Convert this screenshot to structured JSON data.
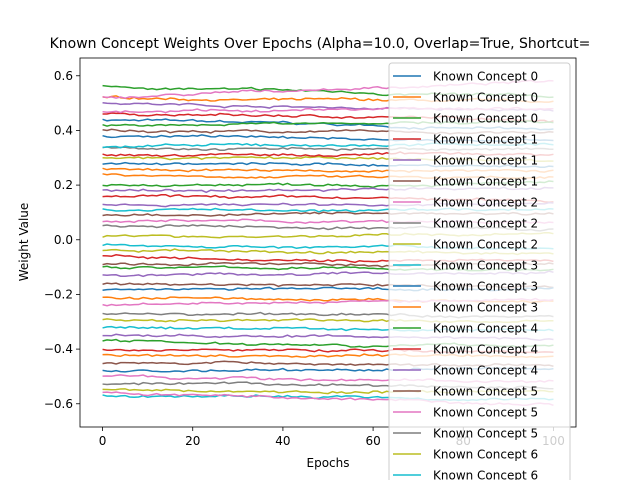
{
  "chart_data": {
    "type": "line",
    "title": "Known Concept Weights Over Epochs (Alpha=10.0, Overlap=True, Shortcut=",
    "xlabel": "Epochs",
    "ylabel": "Weight Value",
    "xlim": [
      -5,
      105
    ],
    "ylim": [
      -0.685,
      0.665
    ],
    "xticks": [
      0,
      20,
      40,
      60,
      80,
      100
    ],
    "yticks": [
      -0.6,
      -0.4,
      -0.2,
      0.0,
      0.2,
      0.4,
      0.6
    ],
    "xtick_labels": [
      "0",
      "20",
      "40",
      "60",
      "80",
      "100"
    ],
    "ytick_labels": [
      "−0.6",
      "−0.4",
      "−0.2",
      "0.0",
      "0.2",
      "0.4",
      "0.6"
    ],
    "grid": false,
    "legend_position": "upper-right",
    "epochs": [
      0,
      100
    ],
    "palette": [
      "#1f77b4",
      "#ff7f0e",
      "#2ca02c",
      "#d62728",
      "#9467bd",
      "#8c564b",
      "#e377c2",
      "#7f7f7f",
      "#bcbd22",
      "#17becf"
    ],
    "series": [
      {
        "name": "Known Concept 0",
        "color": "#1f77b4",
        "start": 0.44,
        "end": 0.4
      },
      {
        "name": "Known Concept 0",
        "color": "#ff7f0e",
        "start": 0.52,
        "end": 0.5
      },
      {
        "name": "Known Concept 0",
        "color": "#2ca02c",
        "start": 0.56,
        "end": 0.52
      },
      {
        "name": "Known Concept 1",
        "color": "#d62728",
        "start": 0.46,
        "end": 0.44
      },
      {
        "name": "Known Concept 1",
        "color": "#9467bd",
        "start": 0.5,
        "end": 0.47
      },
      {
        "name": "Known Concept 1",
        "color": "#8c564b",
        "start": 0.4,
        "end": 0.39
      },
      {
        "name": "Known Concept 2",
        "color": "#e377c2",
        "start": 0.52,
        "end": 0.58
      },
      {
        "name": "Known Concept 2",
        "color": "#7f7f7f",
        "start": 0.34,
        "end": 0.33
      },
      {
        "name": "Known Concept 2",
        "color": "#bcbd22",
        "start": 0.3,
        "end": 0.29
      },
      {
        "name": "Known Concept 3",
        "color": "#17becf",
        "start": 0.34,
        "end": 0.35
      },
      {
        "name": "Known Concept 3",
        "color": "#1f77b4",
        "start": 0.28,
        "end": 0.27
      },
      {
        "name": "Known Concept 3",
        "color": "#ff7f0e",
        "start": 0.24,
        "end": 0.22
      },
      {
        "name": "Known Concept 4",
        "color": "#2ca02c",
        "start": 0.2,
        "end": 0.21
      },
      {
        "name": "Known Concept 4",
        "color": "#d62728",
        "start": 0.16,
        "end": 0.14
      },
      {
        "name": "Known Concept 4",
        "color": "#9467bd",
        "start": 0.13,
        "end": 0.13
      },
      {
        "name": "Known Concept 5",
        "color": "#8c564b",
        "start": 0.09,
        "end": 0.1
      },
      {
        "name": "Known Concept 5",
        "color": "#e377c2",
        "start": 0.07,
        "end": 0.06
      },
      {
        "name": "Known Concept 5",
        "color": "#7f7f7f",
        "start": 0.05,
        "end": 0.04
      },
      {
        "name": "Known Concept 6",
        "color": "#bcbd22",
        "start": 0.01,
        "end": 0.02
      },
      {
        "name": "Known Concept 6",
        "color": "#17becf",
        "start": -0.02,
        "end": -0.03
      }
    ],
    "extra_lines": [
      {
        "color": "#d62728",
        "start": -0.06,
        "end": -0.08
      },
      {
        "color": "#2ca02c",
        "start": -0.1,
        "end": -0.11
      },
      {
        "color": "#9467bd",
        "start": -0.13,
        "end": -0.12
      },
      {
        "color": "#8c564b",
        "start": -0.16,
        "end": -0.17
      },
      {
        "color": "#1f77b4",
        "start": -0.18,
        "end": -0.18
      },
      {
        "color": "#ff7f0e",
        "start": -0.21,
        "end": -0.23
      },
      {
        "color": "#e377c2",
        "start": -0.24,
        "end": -0.22
      },
      {
        "color": "#7f7f7f",
        "start": -0.27,
        "end": -0.28
      },
      {
        "color": "#bcbd22",
        "start": -0.29,
        "end": -0.3
      },
      {
        "color": "#17becf",
        "start": -0.32,
        "end": -0.33
      },
      {
        "color": "#9467bd",
        "start": -0.35,
        "end": -0.36
      },
      {
        "color": "#2ca02c",
        "start": -0.37,
        "end": -0.39
      },
      {
        "color": "#d62728",
        "start": -0.4,
        "end": -0.41
      },
      {
        "color": "#ff7f0e",
        "start": -0.42,
        "end": -0.42
      },
      {
        "color": "#8c564b",
        "start": -0.45,
        "end": -0.46
      },
      {
        "color": "#1f77b4",
        "start": -0.48,
        "end": -0.47
      },
      {
        "color": "#e377c2",
        "start": -0.5,
        "end": -0.52
      },
      {
        "color": "#7f7f7f",
        "start": -0.53,
        "end": -0.54
      },
      {
        "color": "#bcbd22",
        "start": -0.55,
        "end": -0.56
      },
      {
        "color": "#17becf",
        "start": -0.57,
        "end": -0.58
      },
      {
        "color": "#e377c2",
        "start": -0.56,
        "end": -0.6
      },
      {
        "color": "#2ca02c",
        "start": 0.42,
        "end": 0.43
      },
      {
        "color": "#1f77b4",
        "start": 0.38,
        "end": 0.36
      },
      {
        "color": "#d62728",
        "start": 0.31,
        "end": 0.31
      },
      {
        "color": "#ff7f0e",
        "start": 0.26,
        "end": 0.25
      },
      {
        "color": "#9467bd",
        "start": 0.18,
        "end": 0.19
      },
      {
        "color": "#17becf",
        "start": 0.11,
        "end": 0.11
      },
      {
        "color": "#bcbd22",
        "start": -0.04,
        "end": -0.05
      },
      {
        "color": "#8c564b",
        "start": -0.09,
        "end": -0.09
      },
      {
        "color": "#e377c2",
        "start": 0.47,
        "end": 0.48
      }
    ]
  }
}
